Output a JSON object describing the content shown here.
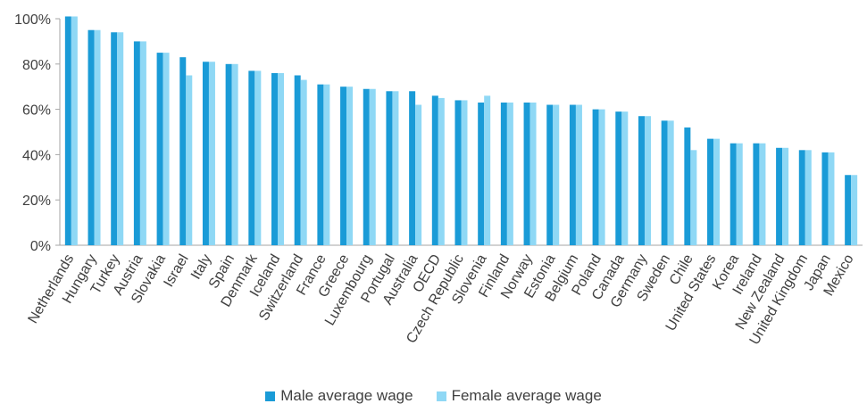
{
  "chart_data": {
    "type": "bar",
    "categories": [
      "Netherlands",
      "Hungary",
      "Turkey",
      "Austria",
      "Slovakia",
      "Israel",
      "Italy",
      "Spain",
      "Denmark",
      "Iceland",
      "Switzerland",
      "France",
      "Greece",
      "Luxembourg",
      "Portugal",
      "Australia",
      "OECD",
      "Czech Republic",
      "Slovenia",
      "Finland",
      "Norway",
      "Estonia",
      "Belgium",
      "Poland",
      "Canada",
      "Germany",
      "Sweden",
      "Chile",
      "United States",
      "Korea",
      "Ireland",
      "New Zealand",
      "United Kingdom",
      "Japan",
      "Mexico"
    ],
    "series": [
      {
        "name": "Male average wage",
        "color": "#1a9bd7",
        "values": [
          101,
          95,
          94,
          90,
          85,
          83,
          81,
          80,
          77,
          76,
          75,
          71,
          70,
          69,
          68,
          68,
          66,
          64,
          63,
          63,
          63,
          62,
          62,
          60,
          59,
          57,
          55,
          52,
          47,
          45,
          45,
          43,
          42,
          41,
          31
        ]
      },
      {
        "name": "Female average wage",
        "color": "#8fd8f5",
        "values": [
          101,
          95,
          94,
          90,
          85,
          75,
          81,
          80,
          77,
          76,
          73,
          71,
          70,
          69,
          68,
          62,
          65,
          64,
          66,
          63,
          63,
          62,
          62,
          60,
          59,
          57,
          55,
          42,
          47,
          45,
          45,
          43,
          42,
          41,
          31
        ]
      }
    ],
    "y_ticks": [
      "0%",
      "20%",
      "40%",
      "60%",
      "80%",
      "100%"
    ],
    "ylim": [
      0,
      100
    ],
    "grid": false,
    "legend_position": "bottom"
  }
}
